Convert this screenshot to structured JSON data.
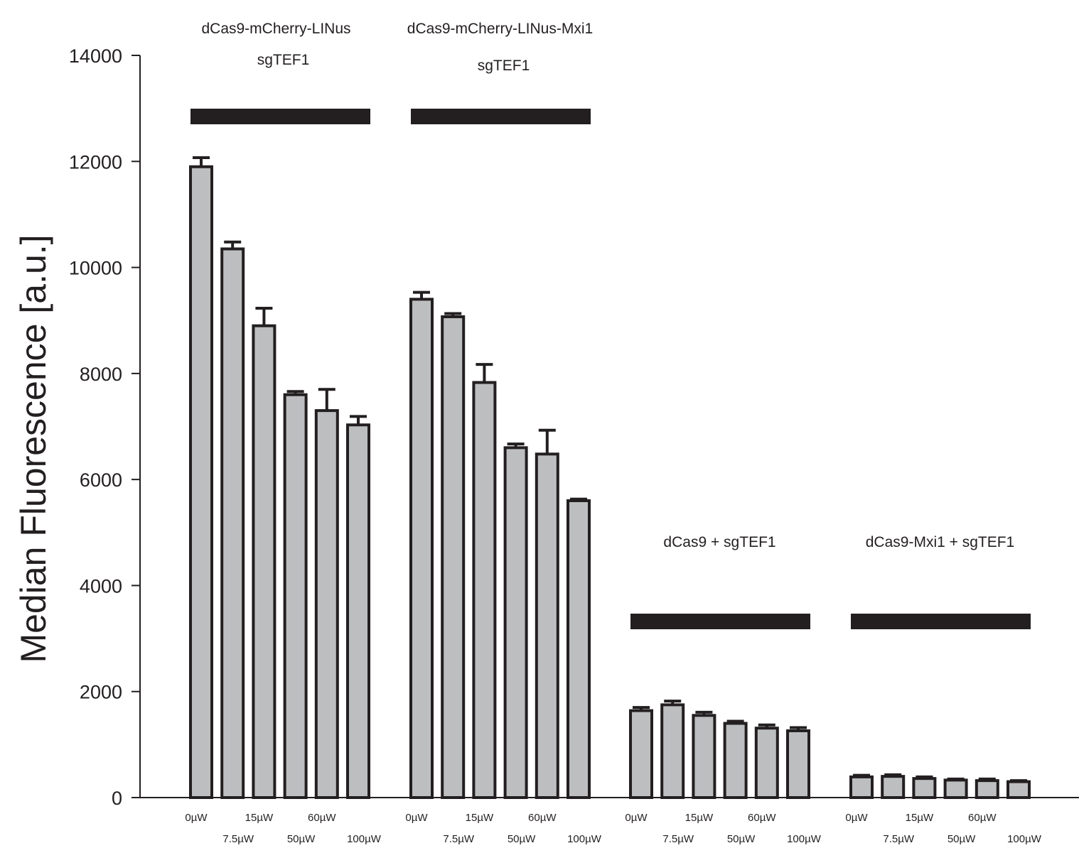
{
  "chart_data": {
    "type": "bar",
    "title": "",
    "xlabel": "",
    "ylabel": "Median Fluorescence [a.u.]",
    "ylim": [
      0,
      14000
    ],
    "yticks": [
      0,
      2000,
      4000,
      6000,
      8000,
      10000,
      12000,
      14000
    ],
    "ytick_labels": [
      "0",
      "2000",
      "4000",
      "6000",
      "8000",
      "10000",
      "12000",
      "14000"
    ],
    "grid": false,
    "legend": "none",
    "categories": [
      "0µW",
      "7.5µW",
      "15µW",
      "50µW",
      "60µW",
      "100µW"
    ],
    "groups": [
      {
        "label_line1": "dCas9-mCherry-LINus",
        "label_line2": "sgTEF1",
        "values": [
          11900,
          10350,
          8900,
          7600,
          7300,
          7030
        ],
        "errors": [
          170,
          130,
          330,
          60,
          400,
          160
        ]
      },
      {
        "label_line1": "dCas9-mCherry-LINus-Mxi1",
        "label_line2": "sgTEF1",
        "values": [
          9400,
          9070,
          7830,
          6600,
          6480,
          5600
        ],
        "errors": [
          130,
          60,
          340,
          70,
          450,
          30
        ]
      },
      {
        "label_line1": "dCas9 + sgTEF1",
        "label_line2": "",
        "values": [
          1640,
          1750,
          1550,
          1400,
          1310,
          1260
        ],
        "errors": [
          60,
          70,
          60,
          40,
          60,
          60
        ]
      },
      {
        "label_line1": "dCas9-Mxi1 + sgTEF1",
        "label_line2": "",
        "values": [
          390,
          400,
          360,
          330,
          320,
          300
        ],
        "errors": [
          30,
          30,
          30,
          20,
          30,
          20
        ]
      }
    ],
    "colors": {
      "bar_fill": "#bcbec0",
      "bar_stroke": "#231f20",
      "group_bar": "#231f20"
    }
  }
}
